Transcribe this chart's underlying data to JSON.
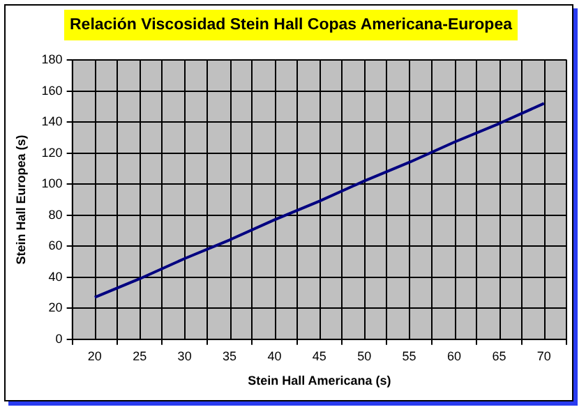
{
  "chart_data": {
    "type": "line",
    "title": "Relación Viscosidad Stein Hall Copas Americana-Europea",
    "xlabel": "Stein Hall Americana (s)",
    "ylabel": "Stein Hall Europea (s)",
    "categories": [
      "20",
      "25",
      "30",
      "35",
      "40",
      "45",
      "50",
      "55",
      "60",
      "65",
      "70"
    ],
    "series": [
      {
        "color": "#000080",
        "values": [
          27,
          39,
          52,
          64,
          77,
          89,
          102,
          114,
          127,
          139,
          152
        ]
      }
    ],
    "ylim": [
      0,
      180
    ],
    "yticks": [
      0,
      20,
      40,
      60,
      80,
      100,
      120,
      140,
      160,
      180
    ],
    "grid": true,
    "legend": false,
    "marker": "none",
    "line_style": "solid"
  }
}
